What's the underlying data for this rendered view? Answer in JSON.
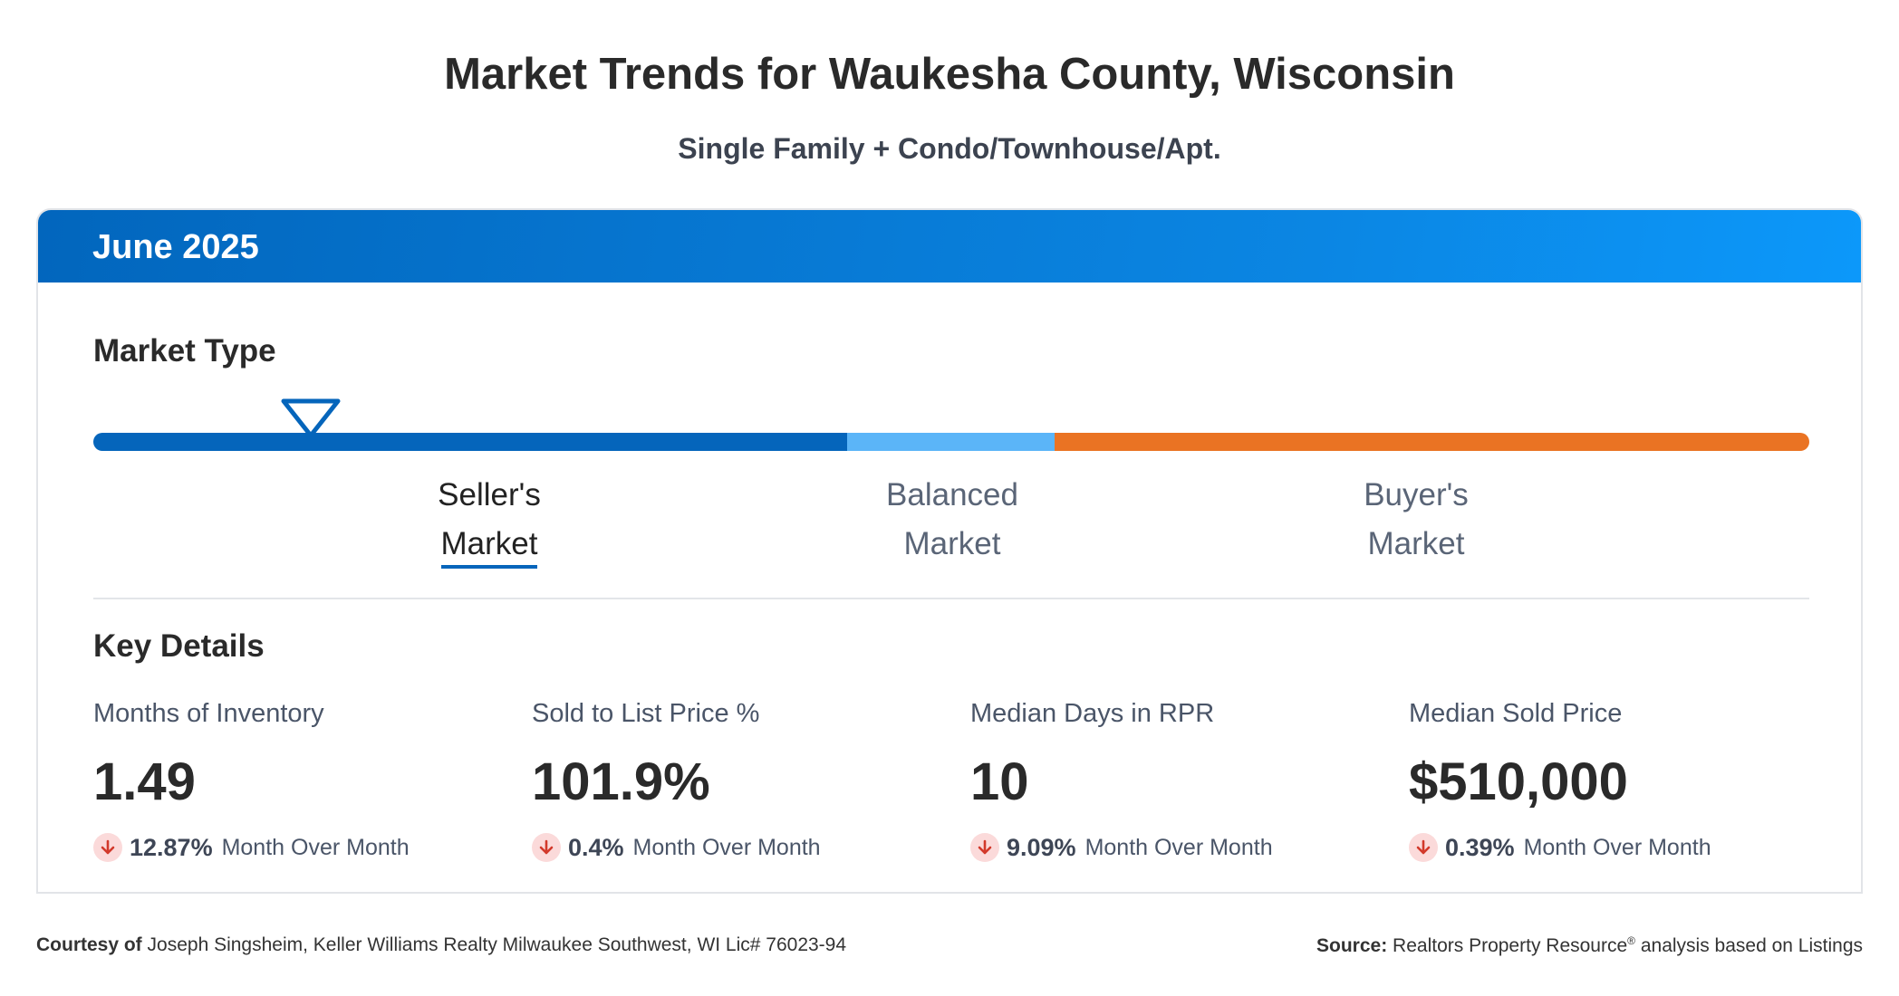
{
  "header": {
    "title": "Market Trends for Waukesha County, Wisconsin",
    "subtitle": "Single Family + Condo/Townhouse/Apt."
  },
  "card": {
    "period": "June 2025",
    "market_type": {
      "title": "Market Type",
      "indicator_position": 0.127,
      "segments": [
        {
          "name": "seller",
          "color": "#0565bb"
        },
        {
          "name": "balanced",
          "color": "#5bb5f8"
        },
        {
          "name": "buyer",
          "color": "#ea7323"
        }
      ],
      "labels": {
        "seller": {
          "line1": "Seller's",
          "line2": "Market"
        },
        "balanced": {
          "line1": "Balanced",
          "line2": "Market"
        },
        "buyer": {
          "line1": "Buyer's",
          "line2": "Market"
        }
      },
      "active": "seller"
    },
    "key_details": {
      "title": "Key Details",
      "metrics": [
        {
          "label": "Months of Inventory",
          "value": "1.49",
          "change": "12.87%",
          "caption": "Month Over Month",
          "direction": "down"
        },
        {
          "label": "Sold to List Price %",
          "value": "101.9%",
          "change": "0.4%",
          "caption": "Month Over Month",
          "direction": "down"
        },
        {
          "label": "Median Days in RPR",
          "value": "10",
          "change": "9.09%",
          "caption": "Month Over Month",
          "direction": "down"
        },
        {
          "label": "Median Sold Price",
          "value": "$510,000",
          "change": "0.39%",
          "caption": "Month Over Month",
          "direction": "down"
        }
      ]
    }
  },
  "footer": {
    "courtesy_label": "Courtesy of",
    "courtesy_text": "Joseph Singsheim, Keller Williams Realty Milwaukee Southwest, WI Lic# 76023-94",
    "source_label": "Source:",
    "source_text_pre": "Realtors Property Resource",
    "source_mark": "®",
    "source_text_post": "analysis based on Listings"
  },
  "colors": {
    "accent": "#0565bb",
    "down_icon_bg": "#fbdada",
    "down_icon_arrow": "#d2392b"
  }
}
